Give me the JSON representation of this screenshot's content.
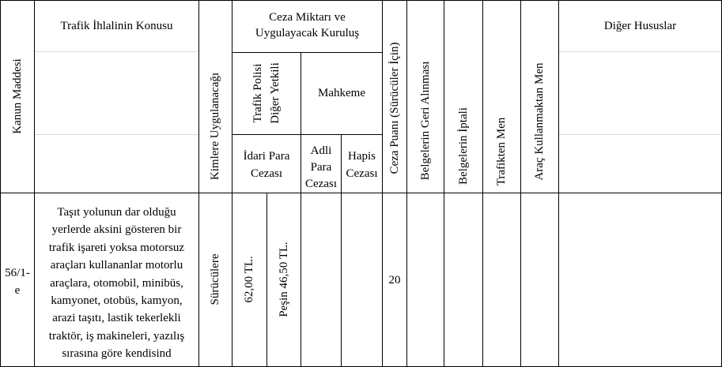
{
  "header": {
    "kanun_maddesi": "Kanun Maddesi",
    "ihlal_konusu": "Trafik İhlalinin Konusu",
    "kimlere": "Kimlere Uygulanacağı",
    "ceza_miktari_line1": "Ceza Miktarı ve",
    "ceza_miktari_line2": "Uygulayacak Kuruluş",
    "trafik_polisi_line1": "Trafik Polisi",
    "trafik_polisi_line2": "Diğer Yetkili",
    "mahkeme": "Mahkeme",
    "idari_line1": "İdari Para",
    "idari_line2": "Cezası",
    "adli_line1": "Adli",
    "adli_line2": "Para",
    "adli_line3": "Cezası",
    "hapis_line1": "Hapis",
    "hapis_line2": "Cezası",
    "ceza_puani": "Ceza Puanı (Sürücüler İçin)",
    "belge_geri": "Belgelerin Geri Alınması",
    "belge_iptal": "Belgelerin İptali",
    "trafikten_men": "Trafikten Men",
    "arac_men": "Araç Kullanmaktan Men",
    "diger": "Diğer Hususlar"
  },
  "row": {
    "madde_line1": "56/1-",
    "madde_line2": "e",
    "konu_lines": [
      "Taşıt yolunun dar olduğu",
      "yerlerde aksini gösteren bir",
      "trafik işareti yoksa motorsuz",
      "araçları kullananlar motorlu",
      "araçlara, otomobil, minibüs,",
      "kamyonet, otobüs, kamyon,",
      "arazi taşıtı, lastik tekerlekli",
      "traktör, iş makineleri, yazılış",
      "sırasına göre kendisind"
    ],
    "kimlere": "Sürücülere",
    "idari_tutar": "62,00 TL.",
    "pesin_tutar": "Peşin 46,50 TL.",
    "ceza_puani": "20"
  }
}
